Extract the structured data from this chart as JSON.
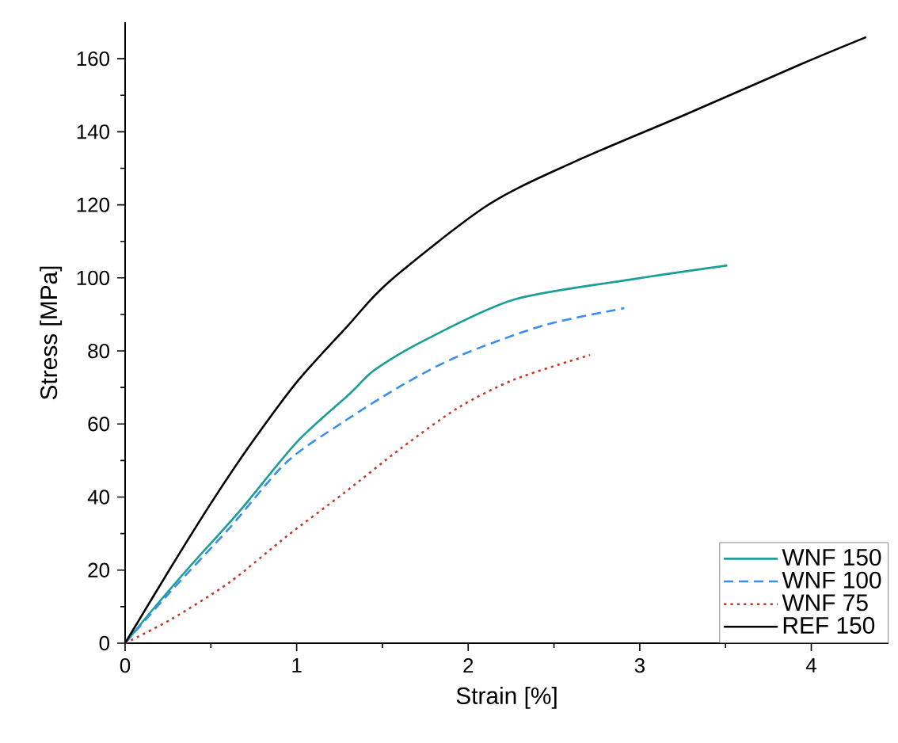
{
  "chart_data": {
    "type": "line",
    "xlabel": "Strain [%]",
    "ylabel": "Stress [MPa]",
    "xlim": [
      0,
      4.45
    ],
    "ylim": [
      0,
      170
    ],
    "xticks": [
      0,
      1,
      2,
      3,
      4
    ],
    "yticks": [
      0,
      20,
      40,
      60,
      80,
      100,
      120,
      140,
      160
    ],
    "legend": "bottom right",
    "grid": false,
    "series": [
      {
        "name": "WNF 150",
        "color": "#1a9e96",
        "line_style": "solid",
        "x": [
          0,
          0.17,
          0.37,
          0.67,
          1.0,
          1.31,
          1.46,
          1.77,
          2.27,
          2.94,
          3.51
        ],
        "values": [
          0,
          9.7,
          20.6,
          36.3,
          55,
          68.3,
          75,
          83.5,
          94.1,
          99.5,
          103.4
        ]
      },
      {
        "name": "WNF 100",
        "color": "#3a8ef0",
        "line_style": "dashed",
        "x": [
          0,
          0.27,
          0.61,
          0.94,
          1.27,
          1.61,
          1.94,
          2.44,
          2.91
        ],
        "values": [
          0,
          14.4,
          31.6,
          49.5,
          60.5,
          70.5,
          78.5,
          87,
          91.7
        ]
      },
      {
        "name": "WNF 75",
        "color": "#c0392b",
        "line_style": "dotted",
        "x": [
          0,
          0.27,
          0.61,
          0.94,
          1.27,
          1.61,
          1.94,
          2.27,
          2.71
        ],
        "values": [
          0,
          6.6,
          16.7,
          29.2,
          40.9,
          53.4,
          64.4,
          72.2,
          78.9
        ]
      },
      {
        "name": "REF 150",
        "color": "#000000",
        "line_style": "solid",
        "x": [
          0,
          0.27,
          0.51,
          0.74,
          1.01,
          1.3,
          1.54,
          2.11,
          2.61,
          3.27,
          3.94,
          4.32
        ],
        "values": [
          0,
          21,
          39,
          55,
          72,
          87,
          99,
          119.8,
          131.6,
          144.8,
          158.5,
          165.9
        ]
      }
    ]
  }
}
